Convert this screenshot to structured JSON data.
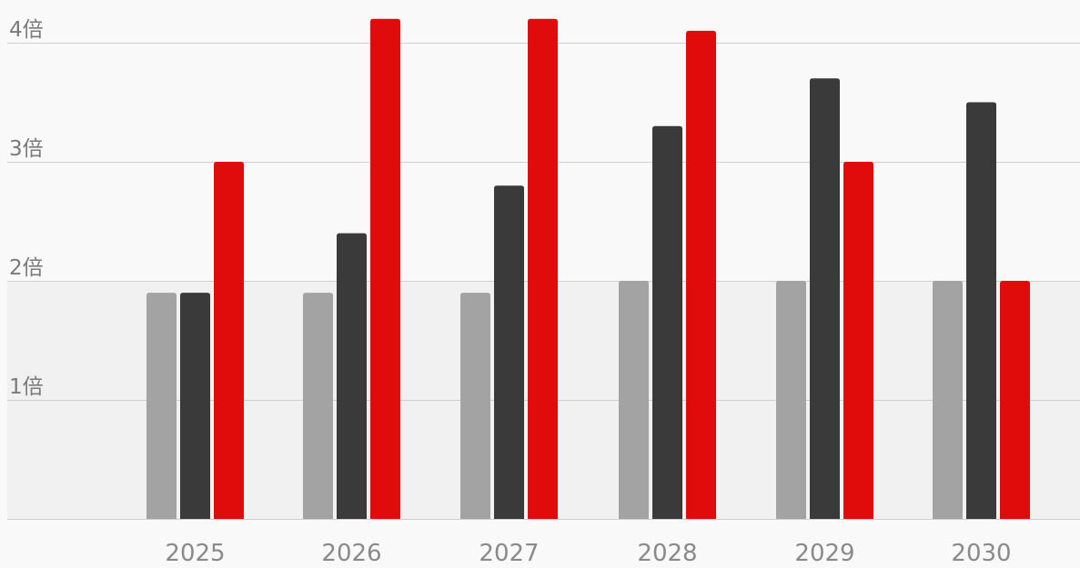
{
  "chart_data": {
    "type": "bar",
    "title": "",
    "xlabel": "",
    "ylabel": "",
    "ylim": [
      0,
      4
    ],
    "y_ticks": [
      1,
      2,
      3,
      4
    ],
    "y_tick_suffix": "倍",
    "grid": true,
    "legend": "none",
    "categories": [
      "2025",
      "2026",
      "2027",
      "2028",
      "2029",
      "2030"
    ],
    "series": [
      {
        "color": "#a3a3a3",
        "values": [
          1.9,
          1.9,
          1.9,
          2.0,
          2.0,
          2.0
        ]
      },
      {
        "color": "#3a3a3a",
        "values": [
          1.9,
          2.4,
          2.8,
          3.3,
          3.7,
          3.5
        ]
      },
      {
        "color": "#e00c0c",
        "values": [
          3.0,
          4.2,
          4.2,
          4.1,
          3.0,
          2.0
        ]
      }
    ],
    "background_colors": {
      "page": "#f9f9f9",
      "lower_band": "#f1f1f1"
    },
    "lower_band_to": 2
  }
}
